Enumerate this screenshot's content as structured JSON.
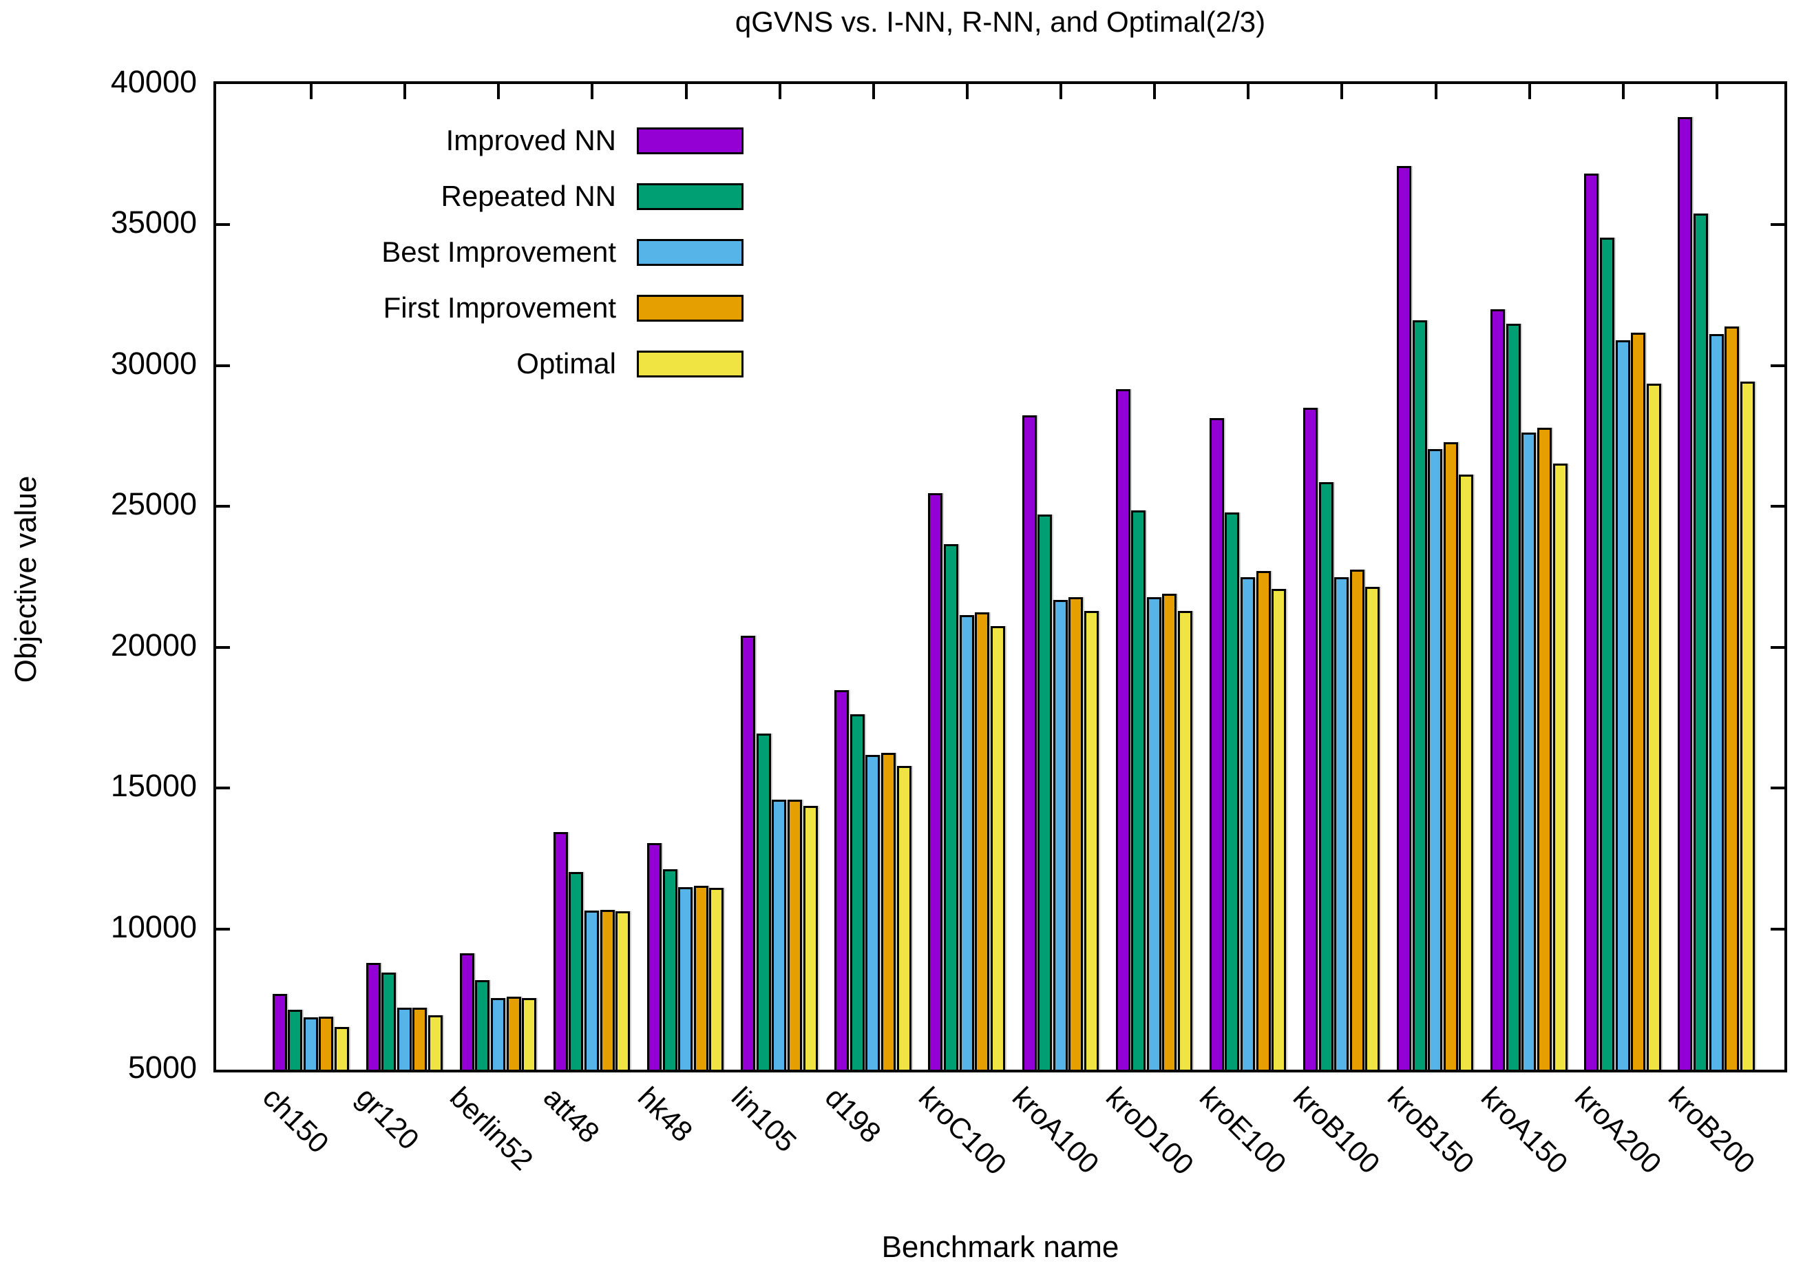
{
  "title": "qGVNS vs. I-NN, R-NN, and Optimal(2/3)",
  "chart_data": {
    "type": "bar",
    "title": "qGVNS vs. I-NN, R-NN, and Optimal(2/3)",
    "xlabel": "Benchmark name",
    "ylabel": "Objective value",
    "ylim": [
      5000,
      40000
    ],
    "yticks": [
      5000,
      10000,
      15000,
      20000,
      25000,
      30000,
      35000,
      40000
    ],
    "grid": false,
    "legend_position": "top-left-inside",
    "bar_border_color": "#000000",
    "background_color": "#ffffff",
    "categories": [
      "ch150",
      "gr120",
      "berlin52",
      "att48",
      "hk48",
      "lin105",
      "d198",
      "kroC100",
      "kroA100",
      "kroD100",
      "kroE100",
      "kroB100",
      "kroB150",
      "kroA150",
      "kroA200",
      "kroB200"
    ],
    "series": [
      {
        "name": "Improved NN",
        "color": "#9400D3",
        "values": [
          7700,
          8790,
          9130,
          13440,
          13040,
          20410,
          18480,
          25480,
          28230,
          29170,
          28140,
          28500,
          37090,
          32000,
          36810,
          38830
        ]
      },
      {
        "name": "Repeated NN",
        "color": "#009E73",
        "values": [
          7130,
          8440,
          8190,
          12020,
          12130,
          16930,
          17630,
          23650,
          24710,
          24850,
          24790,
          25860,
          31600,
          31480,
          34540,
          35400
        ]
      },
      {
        "name": "Best Improvement",
        "color": "#56B4E9",
        "values": [
          6850,
          7200,
          7540,
          10650,
          11490,
          14600,
          16190,
          21140,
          21670,
          21770,
          22490,
          22500,
          27040,
          27620,
          30890,
          31110
        ]
      },
      {
        "name": "First Improvement",
        "color": "#E69F00",
        "values": [
          6890,
          7210,
          7600,
          10670,
          11540,
          14600,
          16250,
          21250,
          21790,
          21910,
          22700,
          22760,
          27280,
          27790,
          31160,
          31390
        ]
      },
      {
        "name": "Optimal",
        "color": "#F0E442",
        "values": [
          6528,
          6942,
          7542,
          10628,
          11461,
          14379,
          15780,
          20749,
          21282,
          21294,
          22068,
          22141,
          26130,
          26524,
          29368,
          29437
        ]
      }
    ]
  }
}
